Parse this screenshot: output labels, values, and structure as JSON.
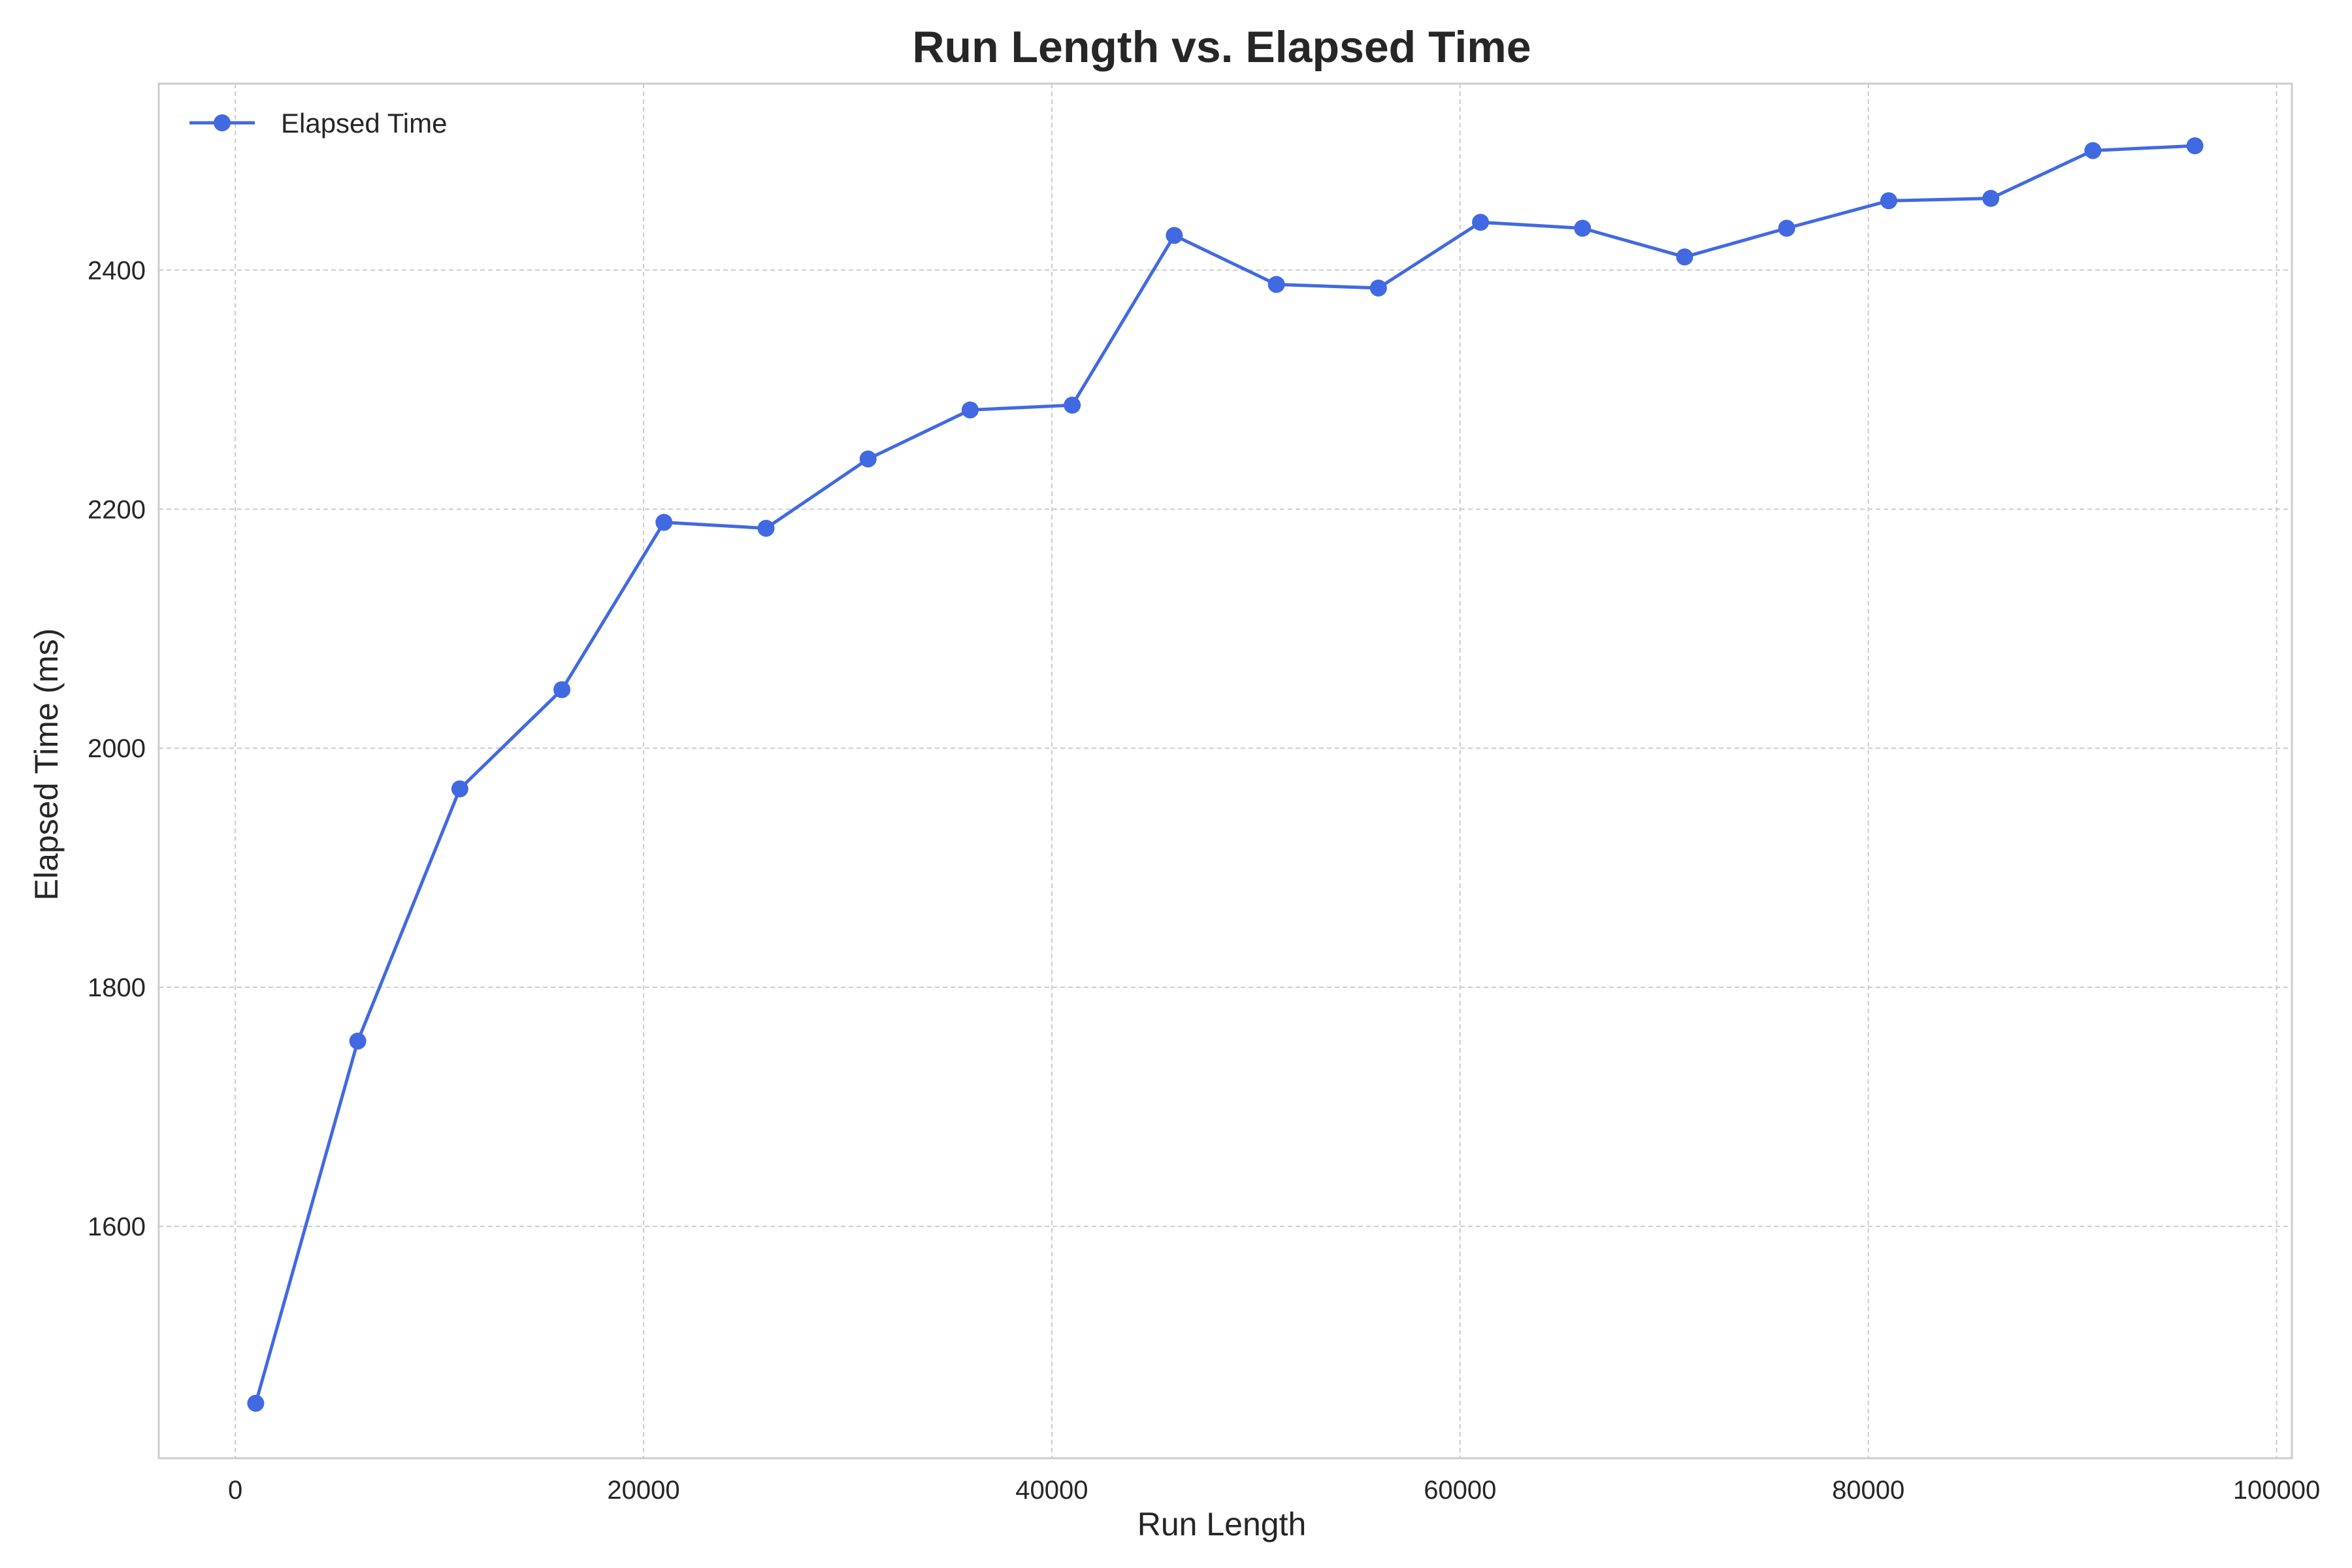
{
  "chart_data": {
    "type": "line",
    "title": "Run Length vs. Elapsed Time",
    "xlabel": "Run Length",
    "ylabel": "Elapsed Time (ms)",
    "xlim": [
      -3750,
      100750
    ],
    "ylim": [
      1406,
      2556
    ],
    "xticks": [
      0,
      20000,
      40000,
      60000,
      80000,
      100000
    ],
    "yticks": [
      1600,
      1800,
      2000,
      2200,
      2400
    ],
    "grid": true,
    "legend_position": "top-left",
    "series_color": "#4169e1",
    "series": [
      {
        "name": "Elapsed Time",
        "x": [
          1000,
          6000,
          11000,
          16000,
          21000,
          26000,
          31000,
          36000,
          41000,
          46000,
          51000,
          56000,
          61000,
          66000,
          71000,
          76000,
          81000,
          86000,
          91000,
          96000
        ],
        "y": [
          1452,
          1755,
          1966,
          2049,
          2189,
          2184,
          2242,
          2283,
          2287,
          2429,
          2388,
          2385,
          2440,
          2435,
          2411,
          2435,
          2458,
          2460,
          2500,
          2504
        ]
      }
    ]
  }
}
